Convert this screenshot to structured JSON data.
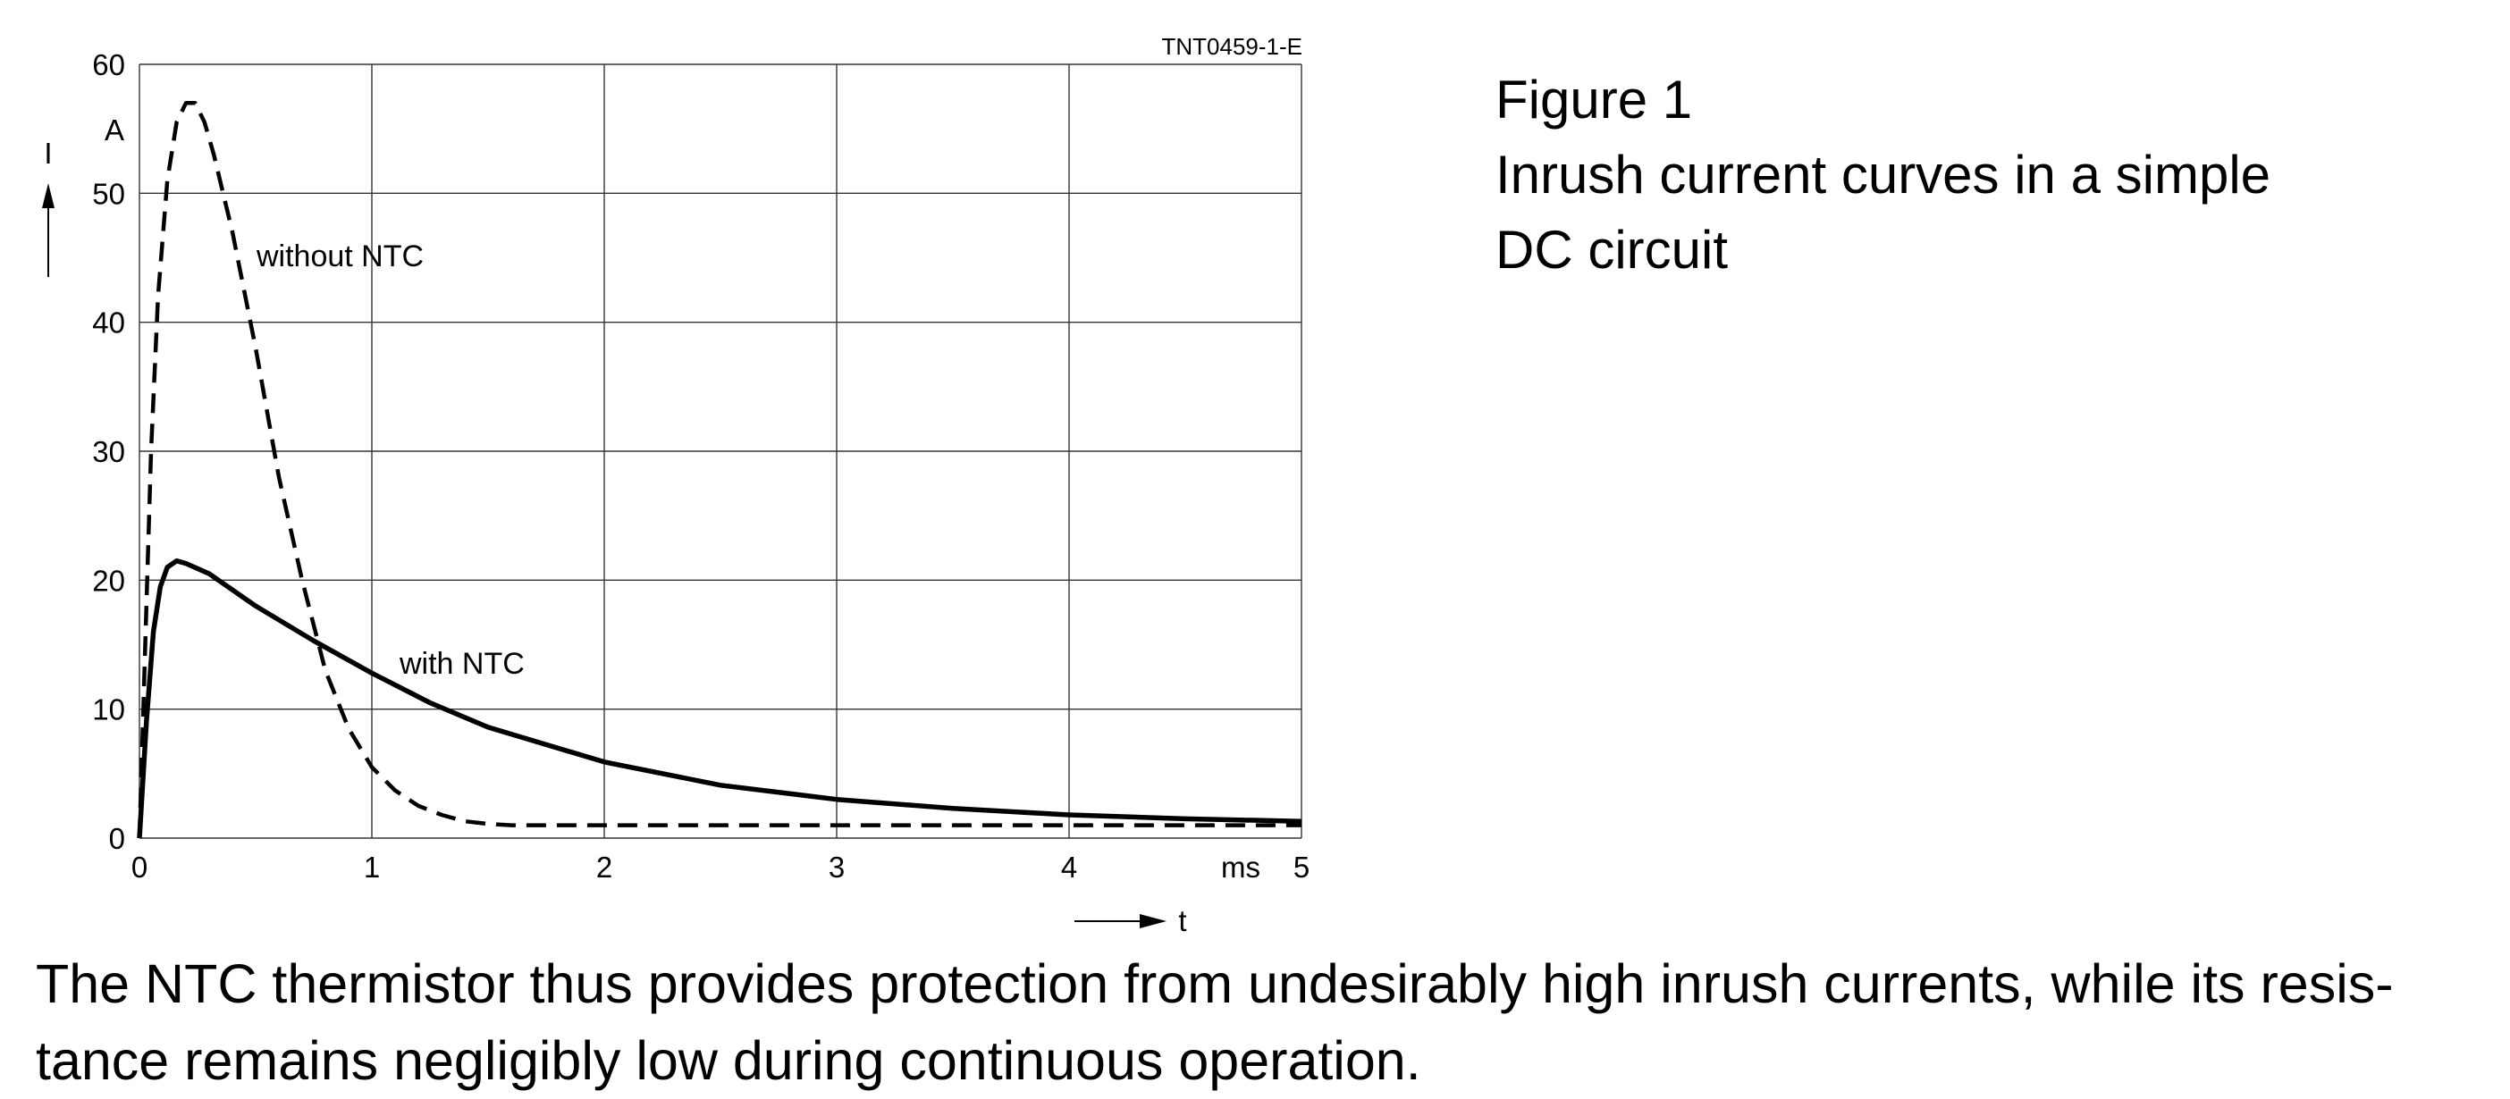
{
  "figure_code": "TNT0459-1-E",
  "caption": {
    "figure_label": "Figure 1",
    "line1": "Inrush current curves in a simple",
    "line2": "DC circuit"
  },
  "paragraph": {
    "line1": "The NTC thermistor thus provides protection from undesirably high inrush currents, while its resis-",
    "line2": "tance remains negligibly low during continuous operation."
  },
  "chart_data": {
    "type": "line",
    "title": "",
    "xlabel": "t",
    "x_unit": "ms",
    "ylabel": "I",
    "y_unit": "A",
    "xlim": [
      0,
      5
    ],
    "ylim": [
      0,
      60
    ],
    "x_ticks": [
      "0",
      "1",
      "2",
      "3",
      "4",
      "5"
    ],
    "y_ticks": [
      "0",
      "10",
      "20",
      "30",
      "40",
      "50",
      "60"
    ],
    "grid": true,
    "series": [
      {
        "name": "without NTC",
        "style": "dashed",
        "x": [
          0,
          0.02,
          0.05,
          0.08,
          0.12,
          0.16,
          0.2,
          0.24,
          0.28,
          0.32,
          0.4,
          0.5,
          0.6,
          0.7,
          0.8,
          0.9,
          1.0,
          1.1,
          1.2,
          1.3,
          1.4,
          1.5,
          1.6,
          2.0,
          3.0,
          4.0,
          5.0
        ],
        "y": [
          0,
          12,
          30,
          42,
          51,
          55.5,
          57,
          57,
          55.5,
          53,
          47,
          38,
          28,
          20,
          13,
          8.5,
          5.5,
          3.7,
          2.5,
          1.8,
          1.3,
          1.1,
          1.0,
          1.0,
          1.0,
          1.0,
          1.0
        ]
      },
      {
        "name": "with NTC",
        "style": "solid",
        "x": [
          0,
          0.03,
          0.06,
          0.09,
          0.12,
          0.16,
          0.2,
          0.3,
          0.5,
          0.75,
          1.0,
          1.25,
          1.5,
          2.0,
          2.5,
          3.0,
          3.5,
          4.0,
          4.5,
          5.0
        ],
        "y": [
          0,
          9,
          16,
          19.5,
          21,
          21.5,
          21.3,
          20.5,
          18,
          15.3,
          12.8,
          10.5,
          8.6,
          5.9,
          4.1,
          3.0,
          2.3,
          1.8,
          1.5,
          1.3
        ]
      }
    ],
    "annotations": [
      "without NTC",
      "with NTC"
    ]
  }
}
